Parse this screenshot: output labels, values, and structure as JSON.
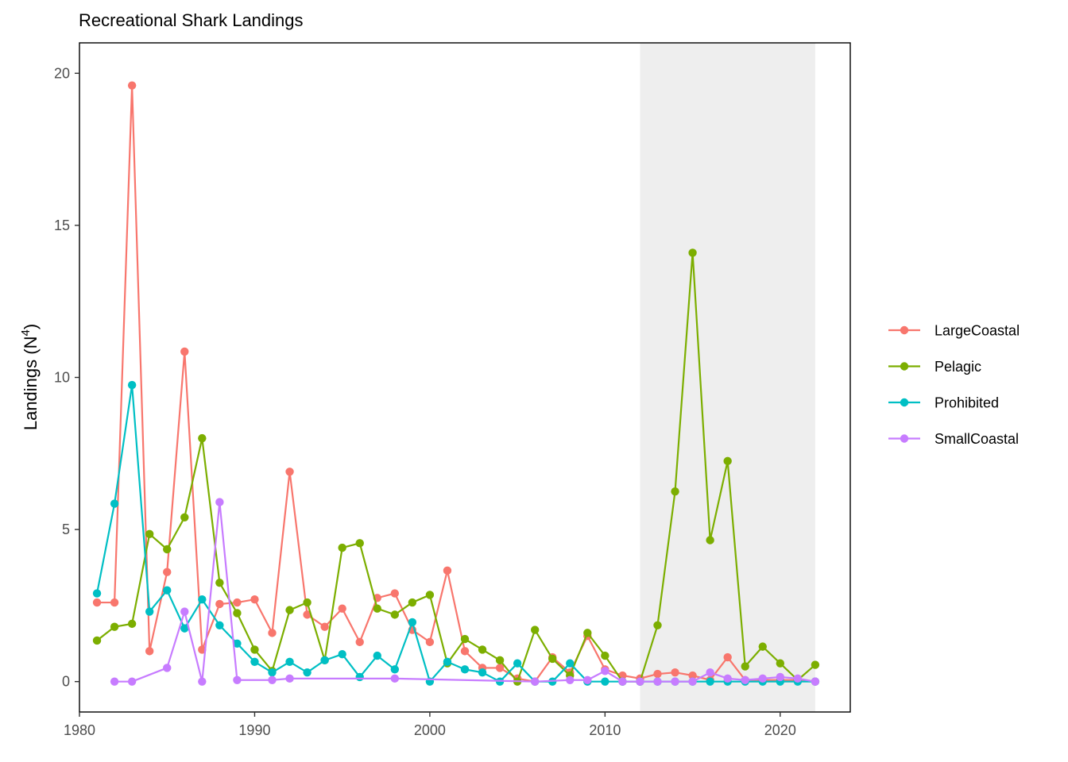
{
  "chart_data": {
    "type": "line",
    "title": "Recreational Shark Landings",
    "ylabel_text": "Landings (N",
    "ylabel_superscript": "4",
    "ylabel_close": ")",
    "xlabel": "",
    "xlim": [
      1980,
      2024
    ],
    "ylim": [
      -1,
      21
    ],
    "x_ticks": [
      1980,
      1990,
      2000,
      2010,
      2020
    ],
    "y_ticks": [
      0,
      5,
      10,
      15,
      20
    ],
    "shaded_region": [
      2012,
      2022
    ],
    "shaded_color": "#eeeeee",
    "grid": false,
    "legend_position": "right",
    "series": [
      {
        "name": "LargeCoastal",
        "color": "#F8766D",
        "points": [
          [
            1981,
            2.6
          ],
          [
            1982,
            2.6
          ],
          [
            1983,
            19.6
          ],
          [
            1984,
            1.0
          ],
          [
            1985,
            3.6
          ],
          [
            1986,
            10.85
          ],
          [
            1987,
            1.05
          ],
          [
            1988,
            2.55
          ],
          [
            1989,
            2.6
          ],
          [
            1990,
            2.7
          ],
          [
            1991,
            1.6
          ],
          [
            1992,
            6.9
          ],
          [
            1993,
            2.2
          ],
          [
            1994,
            1.8
          ],
          [
            1995,
            2.4
          ],
          [
            1996,
            1.3
          ],
          [
            1997,
            2.75
          ],
          [
            1998,
            2.9
          ],
          [
            1999,
            1.7
          ],
          [
            2000,
            1.3
          ],
          [
            2001,
            3.65
          ],
          [
            2002,
            1.0
          ],
          [
            2003,
            0.45
          ],
          [
            2004,
            0.45
          ],
          [
            2005,
            0.1
          ],
          [
            2006,
            0.0
          ],
          [
            2007,
            0.8
          ],
          [
            2008,
            0.3
          ],
          [
            2009,
            1.5
          ],
          [
            2010,
            0.4
          ],
          [
            2011,
            0.2
          ],
          [
            2012,
            0.1
          ],
          [
            2013,
            0.25
          ],
          [
            2014,
            0.3
          ],
          [
            2015,
            0.2
          ],
          [
            2016,
            0.05
          ],
          [
            2017,
            0.8
          ],
          [
            2018,
            0.05
          ],
          [
            2019,
            0.05
          ],
          [
            2020,
            0.05
          ],
          [
            2021,
            0.05
          ],
          [
            2022,
            0.0
          ]
        ]
      },
      {
        "name": "Pelagic",
        "color": "#7CAE00",
        "points": [
          [
            1981,
            1.35
          ],
          [
            1982,
            1.8
          ],
          [
            1983,
            1.9
          ],
          [
            1984,
            4.85
          ],
          [
            1985,
            4.35
          ],
          [
            1986,
            5.4
          ],
          [
            1987,
            8.0
          ],
          [
            1988,
            3.25
          ],
          [
            1989,
            2.25
          ],
          [
            1990,
            1.05
          ],
          [
            1991,
            0.35
          ],
          [
            1992,
            2.35
          ],
          [
            1993,
            2.6
          ],
          [
            1994,
            0.7
          ],
          [
            1995,
            4.4
          ],
          [
            1996,
            4.55
          ],
          [
            1997,
            2.4
          ],
          [
            1998,
            2.2
          ],
          [
            1999,
            2.6
          ],
          [
            2000,
            2.85
          ],
          [
            2001,
            0.6
          ],
          [
            2002,
            1.4
          ],
          [
            2003,
            1.05
          ],
          [
            2004,
            0.7
          ],
          [
            2005,
            0.0
          ],
          [
            2006,
            1.7
          ],
          [
            2007,
            0.75
          ],
          [
            2008,
            0.2
          ],
          [
            2009,
            1.6
          ],
          [
            2010,
            0.85
          ],
          [
            2011,
            0.0
          ],
          [
            2012,
            0.0
          ],
          [
            2013,
            1.85
          ],
          [
            2014,
            6.25
          ],
          [
            2015,
            14.1
          ],
          [
            2016,
            4.65
          ],
          [
            2017,
            7.25
          ],
          [
            2018,
            0.5
          ],
          [
            2019,
            1.15
          ],
          [
            2020,
            0.6
          ],
          [
            2021,
            0.05
          ],
          [
            2022,
            0.55
          ]
        ]
      },
      {
        "name": "Prohibited",
        "color": "#00BFC4",
        "points": [
          [
            1981,
            2.9
          ],
          [
            1982,
            5.85
          ],
          [
            1983,
            9.75
          ],
          [
            1984,
            2.3
          ],
          [
            1985,
            3.0
          ],
          [
            1986,
            1.75
          ],
          [
            1987,
            2.7
          ],
          [
            1988,
            1.85
          ],
          [
            1989,
            1.25
          ],
          [
            1990,
            0.65
          ],
          [
            1991,
            0.3
          ],
          [
            1992,
            0.65
          ],
          [
            1993,
            0.3
          ],
          [
            1994,
            0.7
          ],
          [
            1995,
            0.9
          ],
          [
            1996,
            0.15
          ],
          [
            1997,
            0.85
          ],
          [
            1998,
            0.4
          ],
          [
            1999,
            1.95
          ],
          [
            2000,
            0.0
          ],
          [
            2001,
            0.65
          ],
          [
            2002,
            0.4
          ],
          [
            2003,
            0.3
          ],
          [
            2004,
            0.0
          ],
          [
            2005,
            0.6
          ],
          [
            2006,
            0.0
          ],
          [
            2007,
            0.0
          ],
          [
            2008,
            0.6
          ],
          [
            2009,
            0.0
          ],
          [
            2010,
            0.0
          ],
          [
            2011,
            0.0
          ],
          [
            2012,
            0.0
          ],
          [
            2013,
            0.0
          ],
          [
            2014,
            0.0
          ],
          [
            2015,
            0.0
          ],
          [
            2016,
            0.0
          ],
          [
            2017,
            0.0
          ],
          [
            2018,
            0.0
          ],
          [
            2019,
            0.0
          ],
          [
            2020,
            0.0
          ],
          [
            2021,
            0.0
          ],
          [
            2022,
            0.0
          ]
        ]
      },
      {
        "name": "SmallCoastal",
        "color": "#C77CFF",
        "points": [
          [
            1982,
            0.0
          ],
          [
            1983,
            0.0
          ],
          [
            1985,
            0.45
          ],
          [
            1986,
            2.3
          ],
          [
            1987,
            0.0
          ],
          [
            1988,
            5.9
          ],
          [
            1989,
            0.05
          ],
          [
            1991,
            0.05
          ],
          [
            1992,
            0.1
          ],
          [
            1998,
            0.1
          ],
          [
            2006,
            0.0
          ],
          [
            2008,
            0.05
          ],
          [
            2009,
            0.05
          ],
          [
            2010,
            0.35
          ],
          [
            2011,
            0.0
          ],
          [
            2012,
            0.0
          ],
          [
            2013,
            0.0
          ],
          [
            2014,
            0.0
          ],
          [
            2015,
            0.0
          ],
          [
            2016,
            0.3
          ],
          [
            2017,
            0.1
          ],
          [
            2018,
            0.05
          ],
          [
            2019,
            0.1
          ],
          [
            2020,
            0.15
          ],
          [
            2021,
            0.1
          ],
          [
            2022,
            0.0
          ]
        ]
      }
    ]
  }
}
